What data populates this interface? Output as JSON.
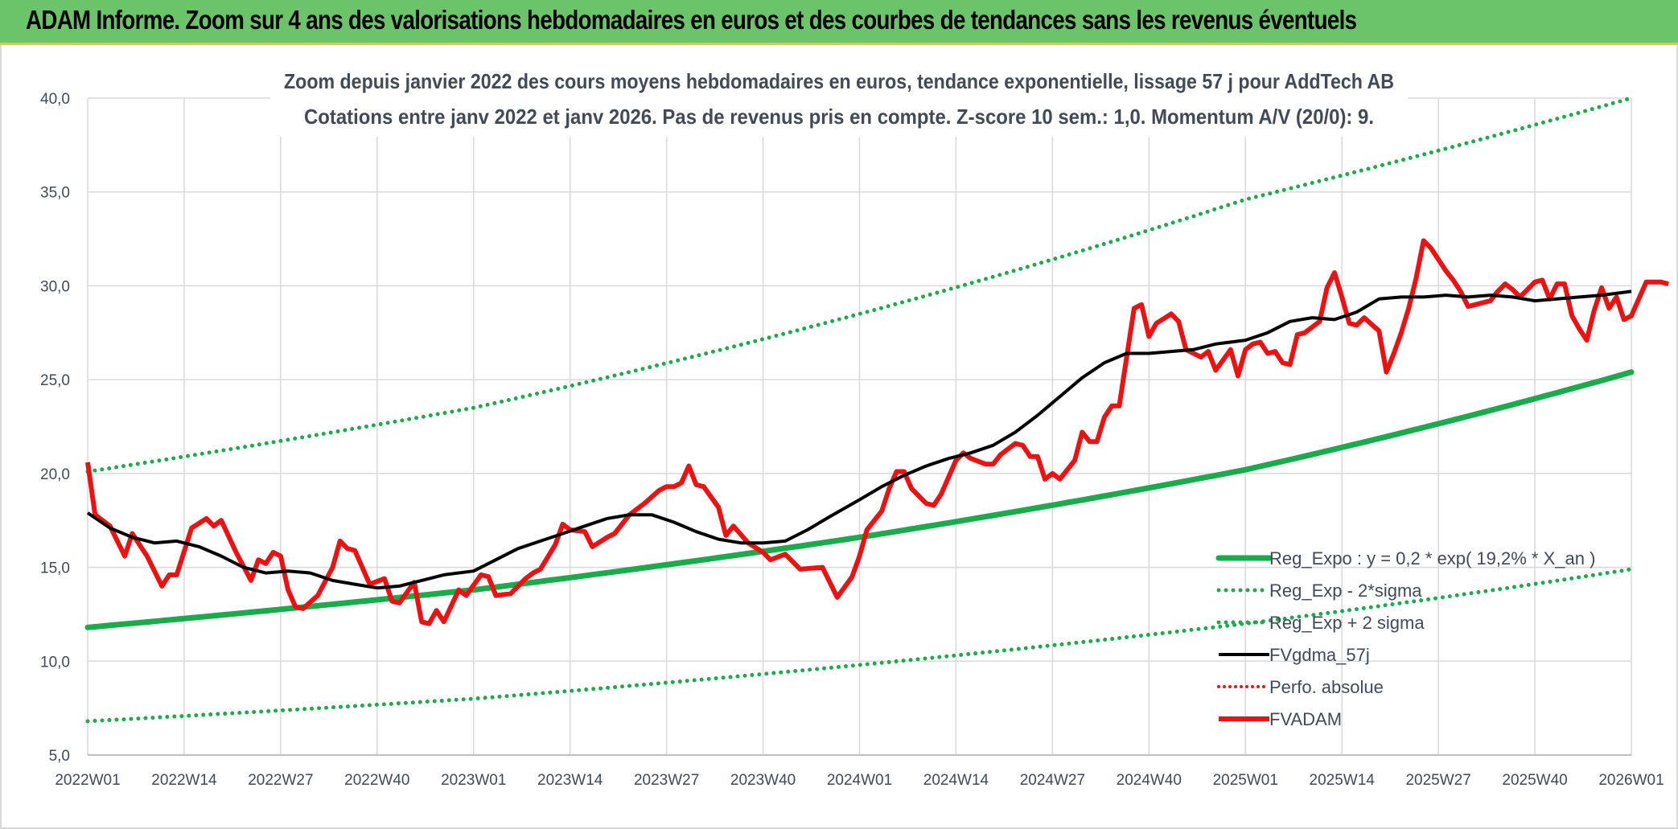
{
  "header": {
    "title": "ADAM Informe. Zoom sur 4 ans des valorisations hebdomadaires en euros et des courbes de tendances sans les revenus éventuels"
  },
  "colors": {
    "header_bg": "#6cc46a",
    "reg_expo": "#1aab4a",
    "fvadam": "#ee1111",
    "fvgdma": "#000000",
    "perfo": "#ee1111",
    "grid": "#d9d9d9",
    "axis_text": "#404a58"
  },
  "chart_data": {
    "type": "line",
    "title": "Zoom depuis janvier 2022 des cours moyens hebdomadaires en euros, tendance exponentielle, lissage 57 j pour AddTech AB",
    "subtitle": "Cotations entre janv 2022 et janv 2026. Pas de revenus pris en compte. Z-score 10 sem.: 1,0. Momentum A/V (20/0): 9.",
    "ylim": [
      5,
      40
    ],
    "y_ticks": [
      "5,0",
      "10,0",
      "15,0",
      "20,0",
      "25,0",
      "30,0",
      "35,0",
      "40,0"
    ],
    "x_ticks": [
      "2022W01",
      "2022W14",
      "2022W27",
      "2022W40",
      "2023W01",
      "2023W14",
      "2023W27",
      "2023W40",
      "2024W01",
      "2024W14",
      "2024W27",
      "2024W40",
      "2025W01",
      "2025W14",
      "2025W27",
      "2025W40",
      "2026W01"
    ],
    "grid": true,
    "legend_position": "bottom-right",
    "legend": [
      "Reg_Expo : y = 0,2 * exp( 19,2% *  X_an )",
      "Reg_Exp - 2*sigma",
      "Reg_Exp + 2 sigma",
      "FVgdma_57j",
      "Perfo. absolue",
      "FVADAM"
    ],
    "series": [
      {
        "name": "Reg_Expo : y = 0,2 * exp( 19,2% *  X_an )",
        "style": "solid-green",
        "values": [
          11.8,
          13.8,
          16.6,
          20.2,
          25.4
        ]
      },
      {
        "name": "Reg_Exp - 2*sigma",
        "style": "dotted-green",
        "values": [
          6.8,
          8.0,
          9.8,
          12.0,
          14.9
        ]
      },
      {
        "name": "Reg_Exp + 2 sigma",
        "style": "dotted-green",
        "values": [
          20.1,
          23.5,
          28.5,
          34.6,
          40.0
        ]
      },
      {
        "name": "FVgdma_57j",
        "style": "solid-black",
        "points": [
          [
            0,
            17.9
          ],
          [
            3,
            17.1
          ],
          [
            6,
            16.6
          ],
          [
            9,
            16.3
          ],
          [
            12,
            16.4
          ],
          [
            15,
            16.1
          ],
          [
            18,
            15.6
          ],
          [
            21,
            15.0
          ],
          [
            24,
            14.7
          ],
          [
            27,
            14.8
          ],
          [
            30,
            14.7
          ],
          [
            33,
            14.3
          ],
          [
            36,
            14.1
          ],
          [
            39,
            13.9
          ],
          [
            42,
            14.0
          ],
          [
            45,
            14.3
          ],
          [
            48,
            14.6
          ],
          [
            52,
            14.8
          ],
          [
            55,
            15.4
          ],
          [
            58,
            16.0
          ],
          [
            61,
            16.4
          ],
          [
            64,
            16.8
          ],
          [
            67,
            17.2
          ],
          [
            70,
            17.6
          ],
          [
            73,
            17.8
          ],
          [
            76,
            17.8
          ],
          [
            79,
            17.4
          ],
          [
            82,
            16.9
          ],
          [
            85,
            16.5
          ],
          [
            88,
            16.3
          ],
          [
            91,
            16.3
          ],
          [
            94,
            16.4
          ],
          [
            97,
            17.0
          ],
          [
            100,
            17.7
          ],
          [
            104,
            18.6
          ],
          [
            107,
            19.3
          ],
          [
            110,
            19.9
          ],
          [
            113,
            20.4
          ],
          [
            116,
            20.8
          ],
          [
            119,
            21.1
          ],
          [
            122,
            21.5
          ],
          [
            125,
            22.2
          ],
          [
            128,
            23.1
          ],
          [
            131,
            24.1
          ],
          [
            134,
            25.1
          ],
          [
            137,
            25.9
          ],
          [
            140,
            26.4
          ],
          [
            143,
            26.4
          ],
          [
            146,
            26.5
          ],
          [
            149,
            26.6
          ],
          [
            152,
            26.9
          ],
          [
            156,
            27.1
          ],
          [
            159,
            27.5
          ],
          [
            162,
            28.1
          ],
          [
            165,
            28.3
          ],
          [
            168,
            28.2
          ],
          [
            171,
            28.6
          ],
          [
            174,
            29.3
          ],
          [
            177,
            29.4
          ],
          [
            180,
            29.4
          ],
          [
            183,
            29.5
          ],
          [
            186,
            29.4
          ],
          [
            189,
            29.5
          ],
          [
            192,
            29.4
          ],
          [
            195,
            29.2
          ],
          [
            198,
            29.3
          ],
          [
            201,
            29.4
          ],
          [
            204,
            29.5
          ],
          [
            208,
            29.7
          ]
        ]
      },
      {
        "name": "Perfo. absolue",
        "style": "dotted-red",
        "values": []
      },
      {
        "name": "FVADAM",
        "style": "solid-red-thick",
        "points": [
          [
            0,
            20.6
          ],
          [
            1,
            17.8
          ],
          [
            3,
            17.2
          ],
          [
            5,
            15.6
          ],
          [
            6,
            16.8
          ],
          [
            8,
            15.6
          ],
          [
            10,
            14.0
          ],
          [
            11,
            14.6
          ],
          [
            12,
            14.6
          ],
          [
            14,
            17.1
          ],
          [
            16,
            17.6
          ],
          [
            17,
            17.2
          ],
          [
            18,
            17.5
          ],
          [
            20,
            15.8
          ],
          [
            22,
            14.3
          ],
          [
            23,
            15.4
          ],
          [
            24,
            15.2
          ],
          [
            25,
            15.8
          ],
          [
            26,
            15.6
          ],
          [
            27,
            13.8
          ],
          [
            28,
            12.9
          ],
          [
            29,
            12.8
          ],
          [
            31,
            13.5
          ],
          [
            33,
            15.0
          ],
          [
            34,
            16.4
          ],
          [
            35,
            16.0
          ],
          [
            36,
            15.9
          ],
          [
            38,
            14.1
          ],
          [
            40,
            14.4
          ],
          [
            41,
            13.2
          ],
          [
            42,
            13.1
          ],
          [
            44,
            14.2
          ],
          [
            45,
            12.1
          ],
          [
            46,
            12.0
          ],
          [
            47,
            12.7
          ],
          [
            48,
            12.1
          ],
          [
            50,
            13.8
          ],
          [
            51,
            13.5
          ],
          [
            53,
            14.6
          ],
          [
            54,
            14.5
          ],
          [
            55,
            13.5
          ],
          [
            57,
            13.6
          ],
          [
            59,
            14.4
          ],
          [
            60,
            14.7
          ],
          [
            61,
            14.9
          ],
          [
            63,
            16.2
          ],
          [
            64,
            17.3
          ],
          [
            65,
            17.0
          ],
          [
            67,
            16.9
          ],
          [
            68,
            16.1
          ],
          [
            70,
            16.6
          ],
          [
            71,
            16.8
          ],
          [
            73,
            17.8
          ],
          [
            75,
            18.4
          ],
          [
            77,
            19.1
          ],
          [
            78,
            19.3
          ],
          [
            79,
            19.3
          ],
          [
            80,
            19.5
          ],
          [
            81,
            20.4
          ],
          [
            82,
            19.4
          ],
          [
            83,
            19.3
          ],
          [
            85,
            18.2
          ],
          [
            86,
            16.7
          ],
          [
            87,
            17.2
          ],
          [
            89,
            16.3
          ],
          [
            91,
            15.8
          ],
          [
            92,
            15.4
          ],
          [
            94,
            15.7
          ],
          [
            96,
            14.9
          ],
          [
            99,
            15.0
          ],
          [
            100,
            14.2
          ],
          [
            101,
            13.4
          ],
          [
            103,
            14.5
          ],
          [
            104,
            15.6
          ],
          [
            105,
            17.0
          ],
          [
            107,
            18.0
          ],
          [
            108,
            19.2
          ],
          [
            109,
            20.1
          ],
          [
            110,
            20.1
          ],
          [
            111,
            19.2
          ],
          [
            113,
            18.4
          ],
          [
            114,
            18.3
          ],
          [
            115,
            18.9
          ],
          [
            117,
            20.7
          ],
          [
            118,
            21.1
          ],
          [
            119,
            20.8
          ],
          [
            121,
            20.5
          ],
          [
            122,
            20.5
          ],
          [
            123,
            21.0
          ],
          [
            125,
            21.6
          ],
          [
            126,
            21.5
          ],
          [
            127,
            20.9
          ],
          [
            128,
            20.9
          ],
          [
            129,
            19.7
          ],
          [
            130,
            20.0
          ],
          [
            131,
            19.7
          ],
          [
            133,
            20.7
          ],
          [
            134,
            22.2
          ],
          [
            135,
            21.7
          ],
          [
            136,
            21.7
          ],
          [
            137,
            23.0
          ],
          [
            138,
            23.6
          ],
          [
            139,
            23.6
          ],
          [
            141,
            28.8
          ],
          [
            142,
            29.0
          ],
          [
            143,
            27.3
          ],
          [
            144,
            28.0
          ],
          [
            146,
            28.5
          ],
          [
            147,
            28.1
          ],
          [
            148,
            26.6
          ],
          [
            149,
            26.4
          ],
          [
            150,
            26.2
          ],
          [
            151,
            26.5
          ],
          [
            152,
            25.5
          ],
          [
            154,
            26.6
          ],
          [
            155,
            25.2
          ],
          [
            156,
            26.6
          ],
          [
            157,
            26.9
          ],
          [
            158,
            27.0
          ],
          [
            159,
            26.4
          ],
          [
            160,
            26.5
          ],
          [
            161,
            25.9
          ],
          [
            162,
            25.8
          ],
          [
            163,
            27.4
          ],
          [
            164,
            27.5
          ],
          [
            166,
            28.1
          ],
          [
            167,
            29.9
          ],
          [
            168,
            30.7
          ],
          [
            169,
            29.4
          ],
          [
            170,
            28.0
          ],
          [
            171,
            27.9
          ],
          [
            172,
            28.3
          ],
          [
            174,
            27.6
          ],
          [
            175,
            25.4
          ],
          [
            176,
            26.4
          ],
          [
            177,
            27.5
          ],
          [
            178,
            28.8
          ],
          [
            179,
            30.4
          ],
          [
            180,
            32.4
          ],
          [
            181,
            32.0
          ],
          [
            183,
            30.8
          ],
          [
            184,
            30.3
          ],
          [
            185,
            29.7
          ],
          [
            186,
            28.9
          ],
          [
            187,
            29.0
          ],
          [
            188,
            29.1
          ],
          [
            189,
            29.2
          ],
          [
            190,
            29.7
          ],
          [
            191,
            30.1
          ],
          [
            192,
            29.8
          ],
          [
            193,
            29.4
          ],
          [
            194,
            29.8
          ],
          [
            195,
            30.2
          ],
          [
            196,
            30.3
          ],
          [
            197,
            29.3
          ],
          [
            198,
            30.1
          ],
          [
            199,
            30.1
          ],
          [
            200,
            28.4
          ],
          [
            201,
            27.7
          ],
          [
            202,
            27.1
          ],
          [
            203,
            28.7
          ],
          [
            204,
            29.9
          ],
          [
            205,
            28.8
          ],
          [
            206,
            29.4
          ],
          [
            207,
            28.2
          ],
          [
            208,
            28.4
          ],
          [
            209,
            29.3
          ],
          [
            210,
            30.2
          ],
          [
            212,
            30.2
          ],
          [
            213,
            30.1
          ]
        ]
      }
    ]
  }
}
